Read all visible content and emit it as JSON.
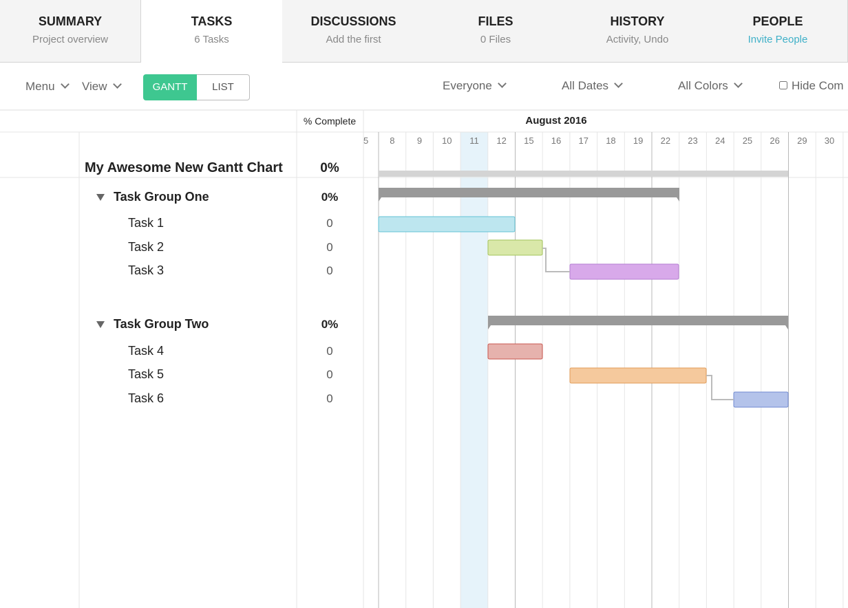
{
  "tabs": [
    {
      "title": "SUMMARY",
      "subtitle": "Project overview"
    },
    {
      "title": "TASKS",
      "subtitle": "6 Tasks"
    },
    {
      "title": "DISCUSSIONS",
      "subtitle": "Add the first"
    },
    {
      "title": "FILES",
      "subtitle": "0 Files"
    },
    {
      "title": "HISTORY",
      "subtitle": "Activity, Undo"
    },
    {
      "title": "PEOPLE",
      "subtitle": "Invite People"
    }
  ],
  "toolbar": {
    "menu": "Menu",
    "view": "View",
    "gantt": "GANTT",
    "list": "LIST",
    "filters": [
      "Everyone",
      "All Dates",
      "All Colors"
    ],
    "hide": "Hide Com"
  },
  "gantt": {
    "percent_header": "% Complete",
    "month": "August 2016",
    "days": [
      5,
      8,
      9,
      10,
      11,
      12,
      15,
      16,
      17,
      18,
      19,
      22,
      23,
      24,
      25,
      26,
      29,
      30
    ],
    "project": {
      "name": "My Awesome New Gantt Chart",
      "complete": "0%"
    },
    "groups": [
      {
        "name": "Task Group One",
        "complete": "0%",
        "tasks": [
          {
            "name": "Task 1",
            "complete": 0
          },
          {
            "name": "Task 2",
            "complete": 0
          },
          {
            "name": "Task 3",
            "complete": 0
          }
        ]
      },
      {
        "name": "Task Group Two",
        "complete": "0%",
        "tasks": [
          {
            "name": "Task 4",
            "complete": 0
          },
          {
            "name": "Task 5",
            "complete": 0
          },
          {
            "name": "Task 6",
            "complete": 0
          }
        ]
      }
    ]
  }
}
